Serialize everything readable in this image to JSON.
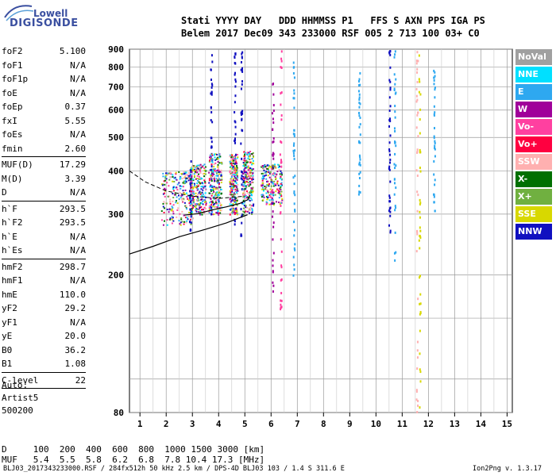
{
  "logo": {
    "line1": "Lowell",
    "line2": "DIGISONDE"
  },
  "header": {
    "line1": "Stati YYYY DAY   DDD HHMMSS P1   FFS S AXN PPS IGA PS",
    "line2": "Belem 2017 Dec09 343 233000 RSF 005 2 713 100 03+ C0"
  },
  "params": [
    {
      "label": "foF2",
      "value": "5.100"
    },
    {
      "label": "foF1",
      "value": "N/A"
    },
    {
      "label": "foF1p",
      "value": "N/A"
    },
    {
      "label": "foE",
      "value": "N/A"
    },
    {
      "label": "foEp",
      "value": "0.37"
    },
    {
      "label": "fxI",
      "value": "5.55"
    },
    {
      "label": "foEs",
      "value": "N/A"
    },
    {
      "label": "fmin",
      "value": "2.60"
    },
    {
      "sep": true
    },
    {
      "label": "MUF(D)",
      "value": "17.29"
    },
    {
      "label": "M(D)",
      "value": "3.39"
    },
    {
      "label": "D",
      "value": "N/A"
    },
    {
      "sep": true
    },
    {
      "label": "h`F",
      "value": "293.5"
    },
    {
      "label": "h`F2",
      "value": "293.5"
    },
    {
      "label": "h`E",
      "value": "N/A"
    },
    {
      "label": "h`Es",
      "value": "N/A"
    },
    {
      "sep": true
    },
    {
      "label": "hmF2",
      "value": "298.7"
    },
    {
      "label": "hmF1",
      "value": "N/A"
    },
    {
      "label": "hmE",
      "value": "110.0"
    },
    {
      "label": "yF2",
      "value": "29.2"
    },
    {
      "label": "yF1",
      "value": "N/A"
    },
    {
      "label": "yE",
      "value": "20.0"
    },
    {
      "label": "B0",
      "value": "36.2"
    },
    {
      "label": "B1",
      "value": "1.08"
    },
    {
      "sep": true
    },
    {
      "label": "C-level",
      "value": "22"
    },
    {
      "sep": true
    }
  ],
  "auto": {
    "line1": "Auto:",
    "line2": "Artist5",
    "line3": "500200"
  },
  "dtable": {
    "row1": "D     100  200  400  600  800  1000 1500 3000 [km]",
    "row2": "MUF   5.4  5.5  5.8  6.2  6.8  7.8 10.4 17.3 [MHz]"
  },
  "footer": {
    "left": "BLJ03_2017343233000.RSF / 284fx512h 50 kHz 2.5 km / DPS-4D BLJ03 103 / 1.4 S 311.6 E",
    "right": "Ion2Png v. 1.3.17"
  },
  "legend": [
    {
      "label": "NoVal",
      "color": "#a0a0a0"
    },
    {
      "label": "NNE",
      "color": "#00e0ff"
    },
    {
      "label": "E",
      "color": "#2ea8f0"
    },
    {
      "label": "W",
      "color": "#a0009a"
    },
    {
      "label": "Vo-",
      "color": "#ff40a0"
    },
    {
      "label": "Vo+",
      "color": "#ff0040"
    },
    {
      "label": "SSW",
      "color": "#ffb0b0"
    },
    {
      "label": "X-",
      "color": "#007000"
    },
    {
      "label": "X+",
      "color": "#70b040"
    },
    {
      "label": "SSE",
      "color": "#d8d800"
    },
    {
      "label": "NNW",
      "color": "#1010c0"
    }
  ],
  "chart_data": {
    "type": "scatter",
    "title": "",
    "xlabel": "",
    "ylabel": "",
    "xlim": [
      0.6,
      15.2
    ],
    "ylim": [
      80,
      900
    ],
    "y_scale": "log",
    "grid": true,
    "x_ticks": [
      1,
      2,
      3,
      4,
      5,
      6,
      7,
      8,
      9,
      10,
      11,
      12,
      13,
      14,
      15
    ],
    "y_ticks": [
      80,
      100,
      150,
      200,
      300,
      400,
      500,
      600,
      700,
      800,
      900
    ],
    "y_tick_labels_shown": [
      80,
      200,
      300,
      400,
      500,
      600,
      700,
      800,
      900
    ],
    "profile_solid": [
      [
        0.6,
        230
      ],
      [
        1.5,
        242
      ],
      [
        2.5,
        258
      ],
      [
        3.5,
        271
      ],
      [
        4.3,
        283
      ],
      [
        4.8,
        293
      ],
      [
        5.1,
        298.7
      ]
    ],
    "profile_dashed": [
      [
        0.6,
        400
      ],
      [
        1.2,
        372
      ],
      [
        2,
        350
      ],
      [
        3,
        338
      ],
      [
        4,
        333
      ],
      [
        5,
        338
      ]
    ],
    "trace_solid": [
      [
        2.7,
        298
      ],
      [
        3.2,
        301
      ],
      [
        3.8,
        309
      ],
      [
        4.3,
        315
      ],
      [
        4.8,
        322
      ],
      [
        5.1,
        330
      ],
      [
        5.2,
        340
      ]
    ],
    "echo_columns": [
      {
        "x": 2.9,
        "h": [
          270,
          430
        ],
        "color": "#1010c0"
      },
      {
        "x": 3.7,
        "h": [
          270,
          880
        ],
        "color": "#1010c0"
      },
      {
        "x": 4.6,
        "h": [
          280,
          900
        ],
        "color": "#1010c0"
      },
      {
        "x": 4.85,
        "h": [
          260,
          900
        ],
        "color": "#1010c0"
      },
      {
        "x": 6.05,
        "h": [
          180,
          860
        ],
        "color": "#a0009a"
      },
      {
        "x": 6.35,
        "h": [
          150,
          900
        ],
        "color": "#ff40a0"
      },
      {
        "x": 6.85,
        "h": [
          200,
          900
        ],
        "color": "#2ea8f0"
      },
      {
        "x": 9.35,
        "h": [
          340,
          800
        ],
        "color": "#2ea8f0"
      },
      {
        "x": 10.5,
        "h": [
          260,
          900
        ],
        "color": "#1010c0"
      },
      {
        "x": 10.7,
        "h": [
          220,
          900
        ],
        "color": "#2ea8f0"
      },
      {
        "x": 11.55,
        "h": [
          80,
          900
        ],
        "color": "#ffb0b0"
      },
      {
        "x": 11.65,
        "h": [
          80,
          900
        ],
        "color": "#d8d800"
      },
      {
        "x": 12.2,
        "h": [
          300,
          880
        ],
        "color": "#2ea8f0"
      }
    ],
    "clusters": [
      {
        "x": [
          1.8,
          3.0
        ],
        "h": [
          280,
          400
        ]
      },
      {
        "x": 3.2,
        "h": [
          300,
          420
        ],
        "xw": 0.3
      },
      {
        "x": [
          3.6,
          4.1
        ],
        "h": [
          300,
          450
        ]
      },
      {
        "x": [
          4.4,
          4.7
        ],
        "h": [
          300,
          450
        ]
      },
      {
        "x": [
          4.9,
          5.3
        ],
        "h": [
          300,
          460
        ]
      },
      {
        "x": [
          5.6,
          6.4
        ],
        "h": [
          320,
          420
        ]
      }
    ]
  }
}
